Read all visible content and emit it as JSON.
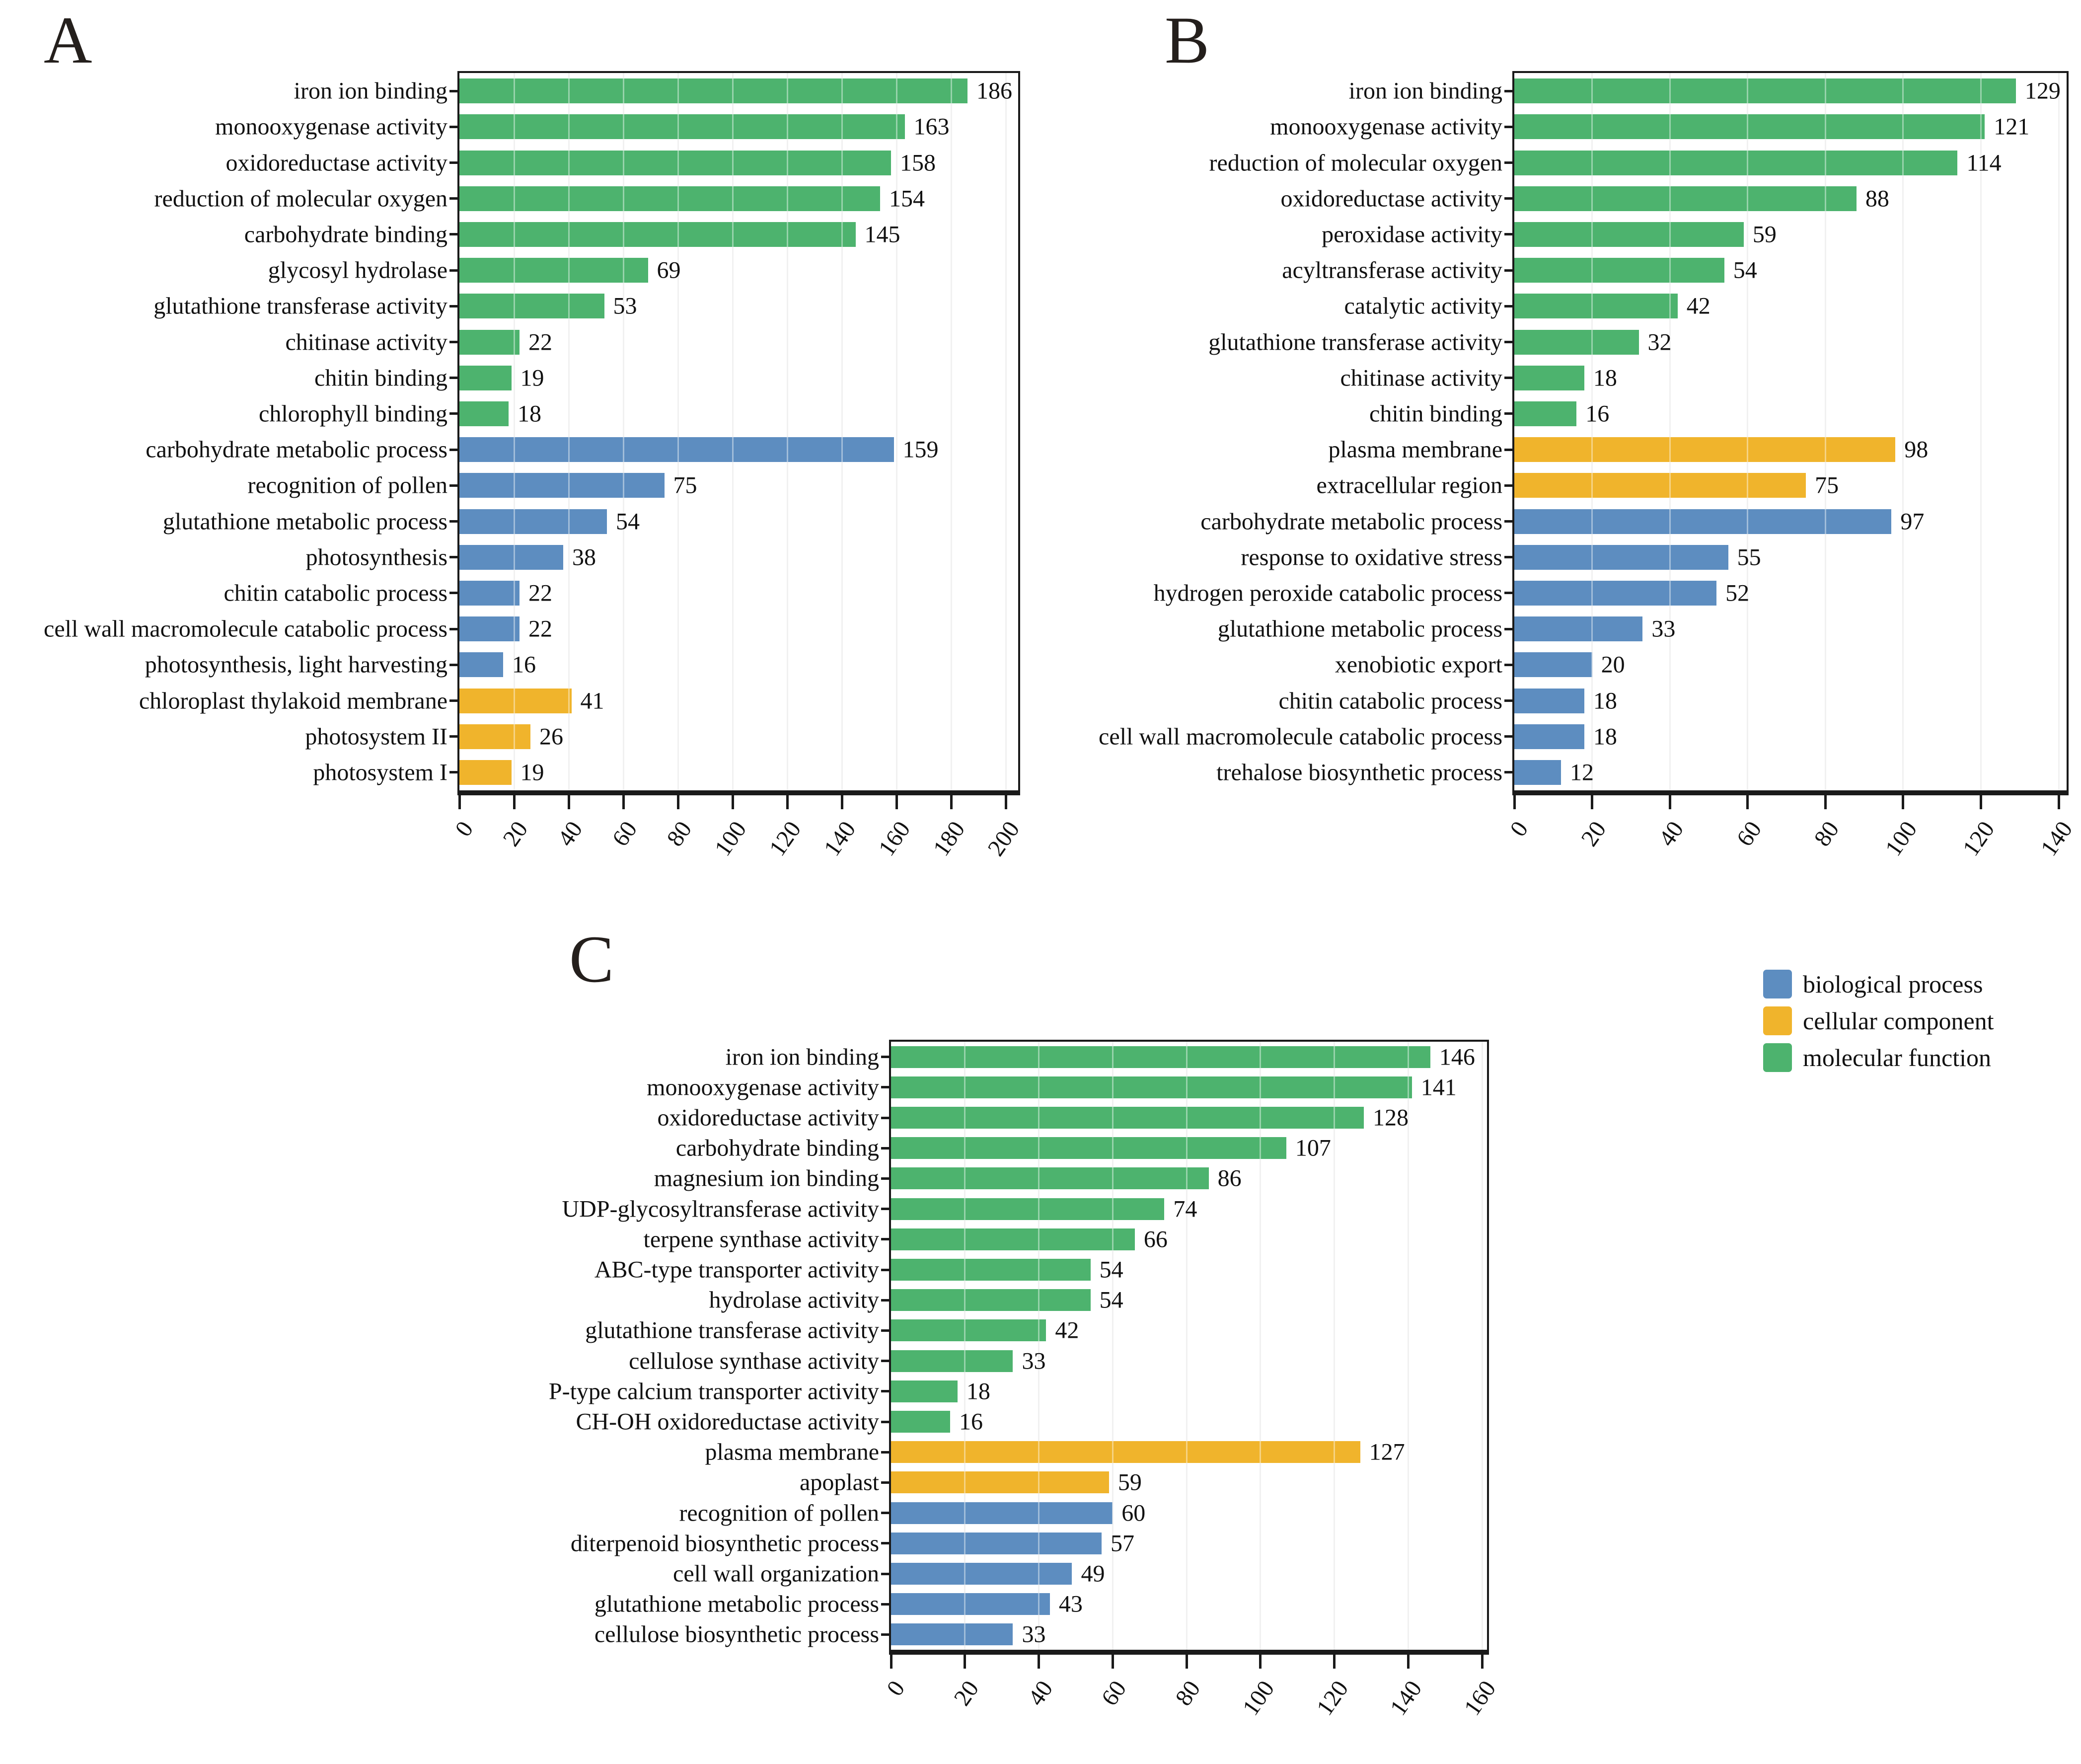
{
  "legend": {
    "items": [
      {
        "label": "biological process",
        "color": "#5D8DC0"
      },
      {
        "label": "cellular component",
        "color": "#F0B42C"
      },
      {
        "label": "molecular function",
        "color": "#4DB36E"
      }
    ]
  },
  "chart_data": [
    {
      "type": "bar",
      "orientation": "horizontal",
      "panel": "A",
      "title": "",
      "xlabel": "",
      "ylabel": "",
      "xlim": [
        0,
        200
      ],
      "xticks": [
        0,
        20,
        40,
        60,
        80,
        100,
        120,
        140,
        160,
        180,
        200
      ],
      "grid": "vertical-major",
      "categories": [
        "iron ion binding",
        "monooxygenase activity",
        "oxidoreductase activity",
        "reduction of molecular oxygen",
        "carbohydrate binding",
        "glycosyl hydrolase",
        "glutathione transferase activity",
        "chitinase activity",
        "chitin binding",
        "chlorophyll binding",
        "carbohydrate metabolic process",
        "recognition of pollen",
        "glutathione metabolic process",
        "photosynthesis",
        "chitin catabolic process",
        "cell wall macromolecule catabolic process",
        "photosynthesis, light harvesting",
        "chloroplast thylakoid membrane",
        "photosystem II",
        "photosystem I"
      ],
      "values": [
        186,
        163,
        158,
        154,
        145,
        69,
        53,
        22,
        19,
        18,
        159,
        75,
        54,
        38,
        22,
        22,
        16,
        41,
        26,
        19
      ],
      "groups": [
        "molecular function",
        "molecular function",
        "molecular function",
        "molecular function",
        "molecular function",
        "molecular function",
        "molecular function",
        "molecular function",
        "molecular function",
        "molecular function",
        "biological process",
        "biological process",
        "biological process",
        "biological process",
        "biological process",
        "biological process",
        "biological process",
        "cellular component",
        "cellular component",
        "cellular component"
      ]
    },
    {
      "type": "bar",
      "orientation": "horizontal",
      "panel": "B",
      "title": "",
      "xlabel": "",
      "ylabel": "",
      "xlim": [
        0,
        140
      ],
      "xticks": [
        0,
        20,
        40,
        60,
        80,
        100,
        120,
        140
      ],
      "grid": "vertical-major",
      "categories": [
        "iron ion binding",
        "monooxygenase activity",
        "reduction of molecular oxygen",
        "oxidoreductase activity",
        "peroxidase activity",
        "acyltransferase activity",
        "catalytic activity",
        "glutathione transferase activity",
        "chitinase activity",
        "chitin binding",
        "plasma membrane",
        "extracellular region",
        "carbohydrate metabolic process",
        "response to oxidative stress",
        "hydrogen peroxide catabolic process",
        "glutathione metabolic process",
        "xenobiotic export",
        "chitin catabolic process",
        "cell wall macromolecule catabolic process",
        "trehalose biosynthetic process"
      ],
      "values": [
        129,
        121,
        114,
        88,
        59,
        54,
        42,
        32,
        18,
        16,
        98,
        75,
        97,
        55,
        52,
        33,
        20,
        18,
        18,
        12
      ],
      "groups": [
        "molecular function",
        "molecular function",
        "molecular function",
        "molecular function",
        "molecular function",
        "molecular function",
        "molecular function",
        "molecular function",
        "molecular function",
        "molecular function",
        "cellular component",
        "cellular component",
        "biological process",
        "biological process",
        "biological process",
        "biological process",
        "biological process",
        "biological process",
        "biological process",
        "biological process"
      ]
    },
    {
      "type": "bar",
      "orientation": "horizontal",
      "panel": "C",
      "title": "",
      "xlabel": "",
      "ylabel": "",
      "xlim": [
        0,
        160
      ],
      "xticks": [
        0,
        20,
        40,
        60,
        80,
        100,
        120,
        140,
        160
      ],
      "grid": "vertical-major",
      "categories": [
        "iron ion binding",
        "monooxygenase activity",
        "oxidoreductase activity",
        "carbohydrate binding",
        "magnesium ion binding",
        "UDP-glycosyltransferase activity",
        "terpene synthase activity",
        "ABC-type transporter activity",
        "hydrolase activity",
        "glutathione transferase activity",
        "cellulose synthase activity",
        "P-type calcium transporter activity",
        "CH-OH oxidoreductase activity",
        "plasma membrane",
        "apoplast",
        "recognition of pollen",
        "diterpenoid biosynthetic process",
        "cell wall organization",
        "glutathione metabolic process",
        "cellulose biosynthetic process"
      ],
      "values": [
        146,
        141,
        128,
        107,
        86,
        74,
        66,
        54,
        54,
        42,
        33,
        18,
        16,
        127,
        59,
        60,
        57,
        49,
        43,
        33
      ],
      "groups": [
        "molecular function",
        "molecular function",
        "molecular function",
        "molecular function",
        "molecular function",
        "molecular function",
        "molecular function",
        "molecular function",
        "molecular function",
        "molecular function",
        "molecular function",
        "molecular function",
        "molecular function",
        "cellular component",
        "cellular component",
        "biological process",
        "biological process",
        "biological process",
        "biological process",
        "biological process"
      ]
    }
  ]
}
